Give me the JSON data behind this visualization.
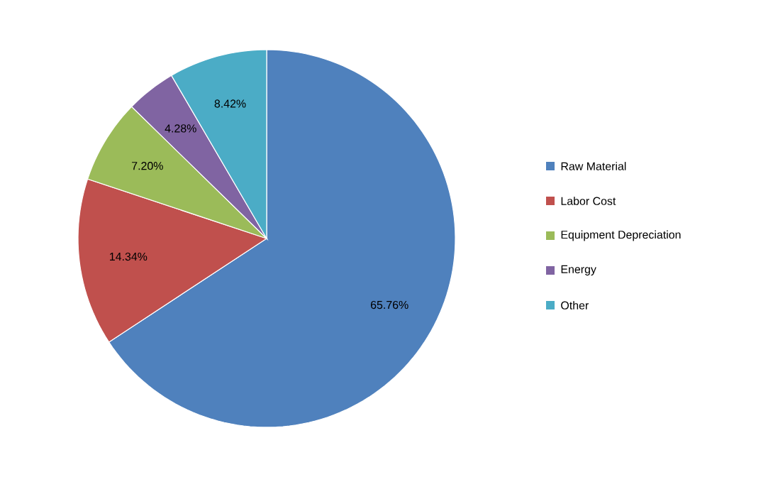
{
  "chart_data": {
    "type": "pie",
    "categories": [
      "Raw Material",
      "Labor Cost",
      "Equipment Depreciation",
      "Energy",
      "Other"
    ],
    "values": [
      65.76,
      14.34,
      7.2,
      4.28,
      8.42
    ],
    "value_labels": [
      "65.76%",
      "14.34%",
      "7.20%",
      "4.28%",
      "8.42%"
    ],
    "colors": [
      "#4f81bd",
      "#c0504d",
      "#9bbb59",
      "#8064a2",
      "#4bacc6"
    ],
    "legend": "right"
  }
}
